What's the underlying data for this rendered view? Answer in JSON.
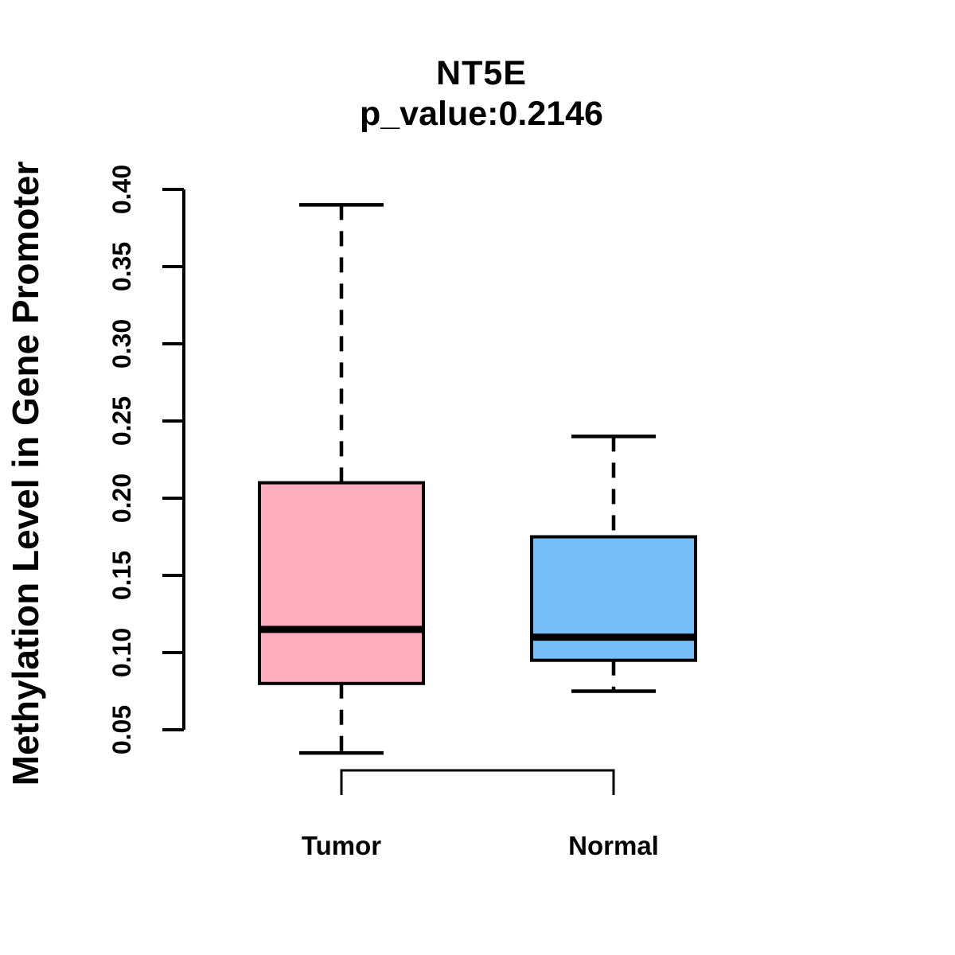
{
  "figure": {
    "background": "#FFFFFF",
    "p_value": 0.2146
  },
  "chart_data": {
    "type": "boxplot",
    "title": "NT5E",
    "subtitle": "p_value:0.2146",
    "ylabel": "Methylation Level in Gene Promoter",
    "xlabel": "",
    "axis_range": [
      0.05,
      0.4
    ],
    "y_ticks": [
      0.05,
      0.1,
      0.15,
      0.2,
      0.25,
      0.3,
      0.35,
      0.4
    ],
    "y_tick_labels": [
      "0.05",
      "0.10",
      "0.15",
      "0.20",
      "0.25",
      "0.30",
      "0.35",
      "0.40"
    ],
    "grid": false,
    "legend": "none",
    "categories": [
      "Tumor",
      "Normal"
    ],
    "series": [
      {
        "name": "Tumor",
        "color": "#FFAEC0",
        "stats": {
          "whisker_low": 0.035,
          "q1": 0.08,
          "median": 0.115,
          "q3": 0.21,
          "whisker_high": 0.39
        }
      },
      {
        "name": "Normal",
        "color": "#75BEF7",
        "stats": {
          "whisker_low": 0.075,
          "q1": 0.095,
          "median": 0.11,
          "q3": 0.175,
          "whisker_high": 0.24
        }
      }
    ],
    "comparison_bracket": {
      "groups": [
        "Tumor",
        "Normal"
      ],
      "label": ""
    },
    "stroke_color": "#000000",
    "whisker_style": "dashed"
  }
}
